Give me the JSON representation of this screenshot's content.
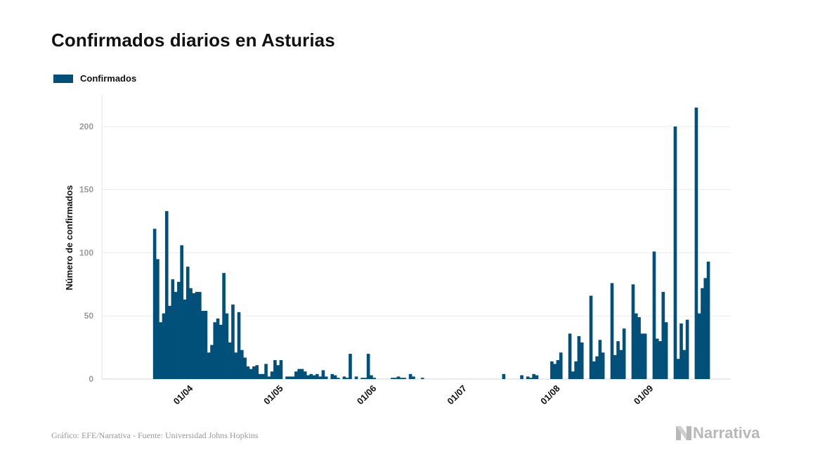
{
  "title": "Confirmados diarios en Asturias",
  "legend": {
    "label": "Confirmados",
    "color": "#00507a"
  },
  "footer": {
    "source": "Gráfico: EFE/Narrativa - Fuente: Universidad Johns Hopkins",
    "brand": "Narrativa",
    "brand_icon": "narrativa-logo-icon"
  },
  "chart_data": {
    "type": "bar",
    "title": "Confirmados diarios en Asturias",
    "xlabel": "",
    "ylabel": "Número de confirmados",
    "ylim": [
      0,
      225
    ],
    "yticks": [
      0,
      50,
      100,
      150,
      200
    ],
    "xlim": [
      "2020-03-03",
      "2020-09-28"
    ],
    "xtick_labels": [
      {
        "date": "2020-04-01",
        "label": "01/04"
      },
      {
        "date": "2020-05-01",
        "label": "01/05"
      },
      {
        "date": "2020-06-01",
        "label": "01/06"
      },
      {
        "date": "2020-07-01",
        "label": "01/07"
      },
      {
        "date": "2020-08-01",
        "label": "01/08"
      },
      {
        "date": "2020-09-01",
        "label": "01/09"
      }
    ],
    "grid": true,
    "legend_position": "top-left",
    "bar_color": "#00507a",
    "series": [
      {
        "name": "Confirmados",
        "points": [
          [
            "2020-03-20",
            119
          ],
          [
            "2020-03-21",
            95
          ],
          [
            "2020-03-22",
            45
          ],
          [
            "2020-03-23",
            52
          ],
          [
            "2020-03-24",
            133
          ],
          [
            "2020-03-25",
            58
          ],
          [
            "2020-03-26",
            79
          ],
          [
            "2020-03-27",
            69
          ],
          [
            "2020-03-28",
            77
          ],
          [
            "2020-03-29",
            106
          ],
          [
            "2020-03-30",
            63
          ],
          [
            "2020-03-31",
            89
          ],
          [
            "2020-04-01",
            72
          ],
          [
            "2020-04-02",
            68
          ],
          [
            "2020-04-03",
            69
          ],
          [
            "2020-04-04",
            69
          ],
          [
            "2020-04-05",
            54
          ],
          [
            "2020-04-06",
            54
          ],
          [
            "2020-04-07",
            21
          ],
          [
            "2020-04-08",
            27
          ],
          [
            "2020-04-09",
            45
          ],
          [
            "2020-04-10",
            48
          ],
          [
            "2020-04-11",
            43
          ],
          [
            "2020-04-12",
            84
          ],
          [
            "2020-04-13",
            52
          ],
          [
            "2020-04-14",
            29
          ],
          [
            "2020-04-15",
            59
          ],
          [
            "2020-04-16",
            21
          ],
          [
            "2020-04-17",
            53
          ],
          [
            "2020-04-18",
            23
          ],
          [
            "2020-04-19",
            17
          ],
          [
            "2020-04-20",
            10
          ],
          [
            "2020-04-21",
            8
          ],
          [
            "2020-04-22",
            10
          ],
          [
            "2020-04-23",
            11
          ],
          [
            "2020-04-24",
            4
          ],
          [
            "2020-04-25",
            4
          ],
          [
            "2020-04-26",
            12
          ],
          [
            "2020-04-27",
            2
          ],
          [
            "2020-04-28",
            6
          ],
          [
            "2020-04-29",
            15
          ],
          [
            "2020-04-30",
            11
          ],
          [
            "2020-05-01",
            15
          ],
          [
            "2020-05-02",
            0
          ],
          [
            "2020-05-03",
            2
          ],
          [
            "2020-05-04",
            2
          ],
          [
            "2020-05-05",
            2
          ],
          [
            "2020-05-06",
            6
          ],
          [
            "2020-05-07",
            8
          ],
          [
            "2020-05-08",
            8
          ],
          [
            "2020-05-09",
            6
          ],
          [
            "2020-05-10",
            3
          ],
          [
            "2020-05-11",
            4
          ],
          [
            "2020-05-12",
            3
          ],
          [
            "2020-05-13",
            4
          ],
          [
            "2020-05-14",
            2
          ],
          [
            "2020-05-15",
            7
          ],
          [
            "2020-05-16",
            2
          ],
          [
            "2020-05-17",
            0
          ],
          [
            "2020-05-18",
            4
          ],
          [
            "2020-05-19",
            3
          ],
          [
            "2020-05-20",
            1
          ],
          [
            "2020-05-21",
            0
          ],
          [
            "2020-05-22",
            2
          ],
          [
            "2020-05-23",
            1
          ],
          [
            "2020-05-24",
            20
          ],
          [
            "2020-05-25",
            0
          ],
          [
            "2020-05-26",
            2
          ],
          [
            "2020-05-27",
            0
          ],
          [
            "2020-05-28",
            1
          ],
          [
            "2020-05-29",
            1
          ],
          [
            "2020-05-30",
            20
          ],
          [
            "2020-05-31",
            3
          ],
          [
            "2020-06-01",
            1
          ],
          [
            "2020-06-02",
            0
          ],
          [
            "2020-06-03",
            0
          ],
          [
            "2020-06-04",
            0
          ],
          [
            "2020-06-05",
            0
          ],
          [
            "2020-06-06",
            0
          ],
          [
            "2020-06-07",
            1
          ],
          [
            "2020-06-08",
            1
          ],
          [
            "2020-06-09",
            2
          ],
          [
            "2020-06-10",
            1
          ],
          [
            "2020-06-11",
            1
          ],
          [
            "2020-06-12",
            0
          ],
          [
            "2020-06-13",
            4
          ],
          [
            "2020-06-14",
            2
          ],
          [
            "2020-06-15",
            0
          ],
          [
            "2020-06-16",
            0
          ],
          [
            "2020-06-17",
            1
          ],
          [
            "2020-07-14",
            4
          ],
          [
            "2020-07-20",
            3
          ],
          [
            "2020-07-22",
            2
          ],
          [
            "2020-07-23",
            1
          ],
          [
            "2020-07-24",
            4
          ],
          [
            "2020-07-25",
            3
          ],
          [
            "2020-07-30",
            14
          ],
          [
            "2020-07-31",
            12
          ],
          [
            "2020-08-01",
            15
          ],
          [
            "2020-08-02",
            21
          ],
          [
            "2020-08-05",
            36
          ],
          [
            "2020-08-06",
            6
          ],
          [
            "2020-08-07",
            14
          ],
          [
            "2020-08-08",
            34
          ],
          [
            "2020-08-09",
            29
          ],
          [
            "2020-08-12",
            66
          ],
          [
            "2020-08-13",
            14
          ],
          [
            "2020-08-14",
            18
          ],
          [
            "2020-08-15",
            31
          ],
          [
            "2020-08-16",
            21
          ],
          [
            "2020-08-19",
            76
          ],
          [
            "2020-08-20",
            19
          ],
          [
            "2020-08-21",
            30
          ],
          [
            "2020-08-22",
            23
          ],
          [
            "2020-08-23",
            40
          ],
          [
            "2020-08-26",
            75
          ],
          [
            "2020-08-27",
            52
          ],
          [
            "2020-08-28",
            49
          ],
          [
            "2020-08-29",
            36
          ],
          [
            "2020-08-30",
            36
          ],
          [
            "2020-09-02",
            101
          ],
          [
            "2020-09-03",
            32
          ],
          [
            "2020-09-04",
            30
          ],
          [
            "2020-09-05",
            69
          ],
          [
            "2020-09-06",
            45
          ],
          [
            "2020-09-09",
            200
          ],
          [
            "2020-09-10",
            16
          ],
          [
            "2020-09-11",
            44
          ],
          [
            "2020-09-12",
            23
          ],
          [
            "2020-09-13",
            47
          ],
          [
            "2020-09-16",
            215
          ],
          [
            "2020-09-17",
            52
          ],
          [
            "2020-09-18",
            72
          ],
          [
            "2020-09-19",
            80
          ],
          [
            "2020-09-20",
            93
          ]
        ]
      }
    ]
  }
}
